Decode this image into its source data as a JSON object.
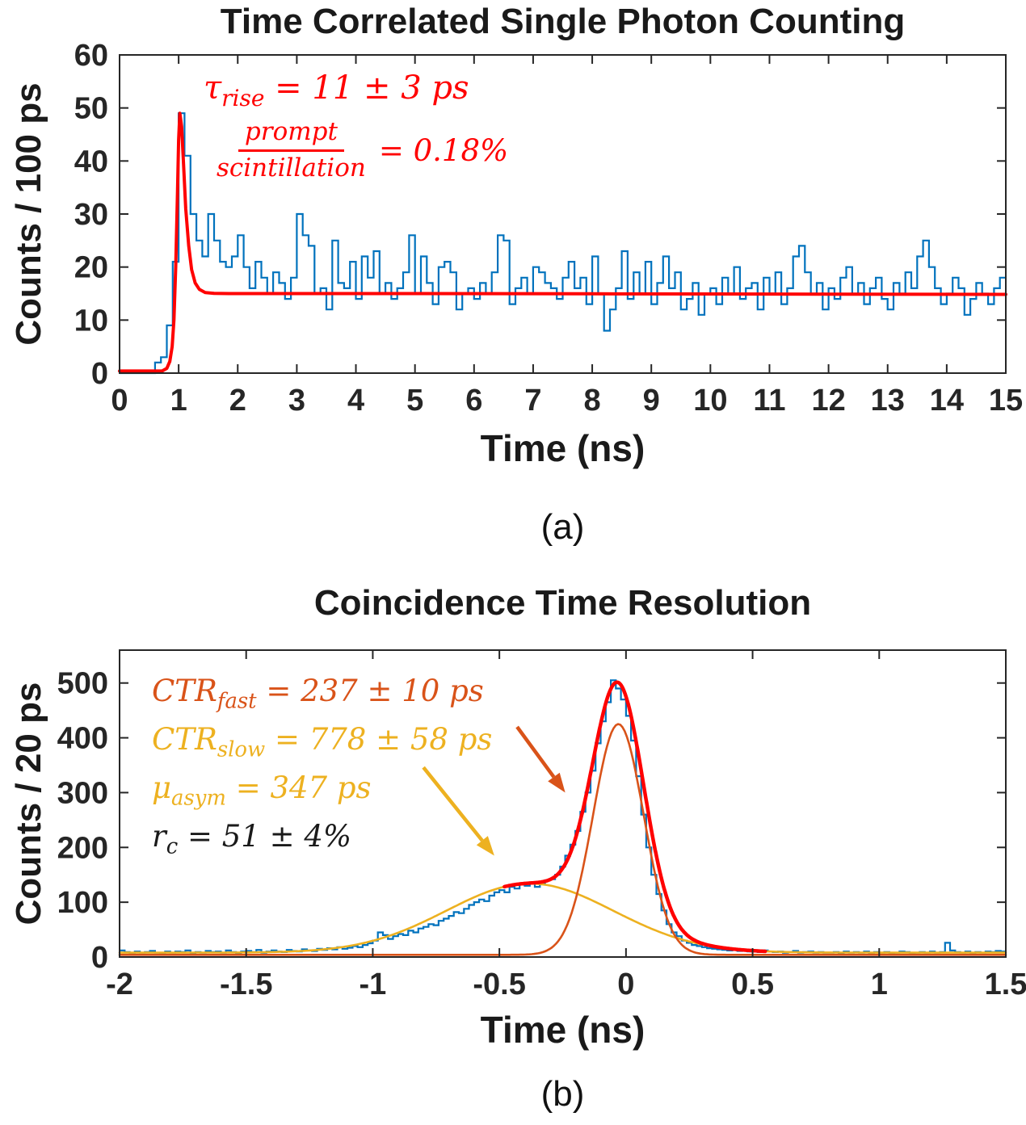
{
  "figure": {
    "background": "#ffffff",
    "sublabels": {
      "a": "(a)",
      "b": "(b)"
    }
  },
  "chart_data": [
    {
      "id": "tcspc",
      "type": "bar",
      "subtype": "step-histogram-with-fit",
      "title": "Time Correlated Single Photon Counting",
      "xlabel": "Time (ns)",
      "ylabel": "Counts / 100 ps",
      "xlim": [
        0,
        15
      ],
      "ylim": [
        0,
        60
      ],
      "grid": false,
      "xtick_vals": [
        0,
        1,
        2,
        3,
        4,
        5,
        6,
        7,
        8,
        9,
        10,
        11,
        12,
        13,
        14,
        15
      ],
      "xtick_labels": [
        "0",
        "1",
        "2",
        "3",
        "4",
        "5",
        "6",
        "7",
        "8",
        "9",
        "10",
        "11",
        "12",
        "13",
        "14",
        "15"
      ],
      "ytick_vals": [
        0,
        10,
        20,
        30,
        40,
        50,
        60
      ],
      "ytick_labels": [
        "0",
        "10",
        "20",
        "30",
        "40",
        "50",
        "60"
      ],
      "histogram": {
        "color": "#0072BD",
        "x_start": 0,
        "bin_width": 0.1,
        "counts": [
          0,
          0,
          0,
          0,
          0,
          0,
          2,
          3,
          9,
          21,
          49,
          41,
          30,
          25,
          22,
          30,
          25,
          21,
          20,
          22,
          26,
          20,
          16,
          21,
          18,
          15,
          19,
          17,
          14,
          18,
          30,
          26,
          24,
          15,
          16,
          12,
          25,
          17,
          16,
          21,
          14,
          22,
          18,
          23,
          15,
          17,
          14,
          16,
          19,
          26,
          15,
          22,
          17,
          13,
          20,
          21,
          19,
          12,
          15,
          16,
          14,
          17,
          15,
          19,
          26,
          25,
          13,
          16,
          18,
          15,
          20,
          19,
          17,
          16,
          14,
          18,
          21,
          16,
          18,
          13,
          22,
          15,
          8,
          12,
          16,
          23,
          14,
          19,
          15,
          21,
          13,
          17,
          22,
          16,
          19,
          12,
          14,
          17,
          11,
          15,
          16,
          13,
          18,
          15,
          20,
          14,
          16,
          17,
          12,
          18,
          15,
          19,
          13,
          16,
          22,
          24,
          19,
          15,
          17,
          12,
          16,
          14,
          18,
          20,
          15,
          17,
          13,
          16,
          18,
          14,
          12,
          17,
          15,
          19,
          16,
          22,
          25,
          20,
          16,
          13,
          15,
          18,
          16,
          11,
          14,
          17,
          15,
          13,
          16,
          18
        ]
      },
      "curves": [
        {
          "name": "prompt-scintillation-fit",
          "color": "#FF0000",
          "width": 4,
          "points_x": [
            0,
            0.72,
            0.8,
            0.85,
            0.89,
            0.92,
            0.95,
            0.98,
            1.0,
            1.02,
            1.05,
            1.08,
            1.12,
            1.17,
            1.22,
            1.28,
            1.35,
            1.45,
            1.6,
            1.85,
            2.3,
            3,
            5,
            8,
            12,
            15
          ],
          "points_y": [
            0.4,
            0.4,
            0.9,
            2.2,
            5,
            10,
            20,
            34,
            44,
            49,
            46.5,
            40,
            31,
            24,
            19.5,
            17,
            15.8,
            15.2,
            15.05,
            15,
            15,
            15,
            15,
            14.95,
            14.9,
            14.85
          ]
        }
      ],
      "annotations": [
        {
          "id": "tau-rise",
          "color": "#FF0000",
          "symbol": "τ",
          "sub": "rise",
          "rest": " = 11 ± 3 ps"
        },
        {
          "id": "prompt-fraction",
          "color": "#FF0000",
          "numerator": "prompt",
          "denominator": "scintillation",
          "rest": "= 0.18%"
        }
      ]
    },
    {
      "id": "ctr",
      "type": "bar",
      "subtype": "step-histogram-with-fits",
      "title": "Coincidence Time Resolution",
      "xlabel": "Time (ns)",
      "ylabel": "Counts / 20 ps",
      "xlim": [
        -2,
        1.5
      ],
      "ylim": [
        0,
        560
      ],
      "grid": false,
      "xtick_vals": [
        -2,
        -1.5,
        -1,
        -0.5,
        0,
        0.5,
        1,
        1.5
      ],
      "xtick_labels": [
        "-2",
        "-1.5",
        "-1",
        "-0.5",
        "0",
        "0.5",
        "1",
        "1.5"
      ],
      "ytick_vals": [
        0,
        100,
        200,
        300,
        400,
        500
      ],
      "ytick_labels": [
        "0",
        "100",
        "200",
        "300",
        "400",
        "500"
      ],
      "histogram": {
        "color": "#0072BD",
        "x_start": -2,
        "bin_width": 0.02,
        "counts": [
          12,
          9,
          7,
          10,
          8,
          9,
          11,
          8,
          7,
          10,
          8,
          10,
          9,
          12,
          7,
          9,
          8,
          11,
          9,
          10,
          8,
          12,
          9,
          7,
          10,
          11,
          9,
          13,
          8,
          10,
          12,
          10,
          9,
          13,
          11,
          10,
          14,
          12,
          11,
          15,
          13,
          16,
          14,
          18,
          15,
          17,
          20,
          18,
          22,
          25,
          30,
          45,
          40,
          33,
          38,
          42,
          40,
          48,
          45,
          52,
          55,
          60,
          58,
          66,
          70,
          75,
          82,
          80,
          88,
          95,
          100,
          105,
          102,
          112,
          118,
          122,
          118,
          128,
          125,
          132,
          130,
          136,
          128,
          135,
          140,
          142,
          150,
          165,
          185,
          205,
          230,
          265,
          300,
          340,
          390,
          430,
          465,
          505,
          490,
          470,
          440,
          395,
          330,
          260,
          200,
          150,
          115,
          85,
          60,
          45,
          38,
          30,
          26,
          22,
          20,
          18,
          16,
          15,
          14,
          13,
          12,
          13,
          11,
          12,
          10,
          11,
          9,
          12,
          10,
          9,
          10,
          8,
          9,
          11,
          8,
          9,
          10,
          8,
          9,
          8,
          8,
          9,
          7,
          10,
          8,
          9,
          8,
          10,
          7,
          9,
          8,
          9,
          7,
          8,
          10,
          9,
          7,
          8,
          9,
          8,
          10,
          8,
          9,
          26,
          12,
          9,
          8,
          10,
          7,
          9,
          8,
          10,
          9,
          11,
          10
        ]
      },
      "curves": [
        {
          "name": "ctr-slow-fit",
          "color": "#EDB120",
          "width": 2.6,
          "base": 8,
          "gaussians": [
            [
              126,
              -0.38,
              0.33
            ]
          ],
          "range": [
            -2,
            1.5
          ]
        },
        {
          "name": "ctr-fast-fit",
          "color": "#D95319",
          "width": 2.6,
          "base": 4,
          "gaussians": [
            [
              421,
              -0.03,
              0.1
            ]
          ],
          "range": [
            -2,
            1.5
          ]
        },
        {
          "name": "ctr-total-fit",
          "color": "#FF0000",
          "width": 4.5,
          "base": 8,
          "gaussians": [
            [
              126,
              -0.38,
              0.33
            ],
            [
              421,
              -0.03,
              0.1
            ]
          ],
          "range": [
            -0.48,
            0.55
          ]
        }
      ],
      "arrows": [
        {
          "color": "#D95319",
          "from": [
            -0.43,
            420
          ],
          "to": [
            -0.24,
            300
          ]
        },
        {
          "color": "#EDB120",
          "from": [
            -0.8,
            346
          ],
          "to": [
            -0.52,
            185
          ]
        }
      ],
      "annotations": [
        {
          "id": "ctr-fast",
          "color": "#D95319",
          "symbol": "CTR",
          "sub": "fast",
          "rest": " = 237 ± 10 ps"
        },
        {
          "id": "ctr-slow",
          "color": "#EDB120",
          "symbol": "CTR",
          "sub": "slow",
          "rest": " = 778 ± 58 ps"
        },
        {
          "id": "mu-asym",
          "color": "#EDB120",
          "symbol": "μ",
          "sub": "asym",
          "rest": " = 347 ps"
        },
        {
          "id": "r-c",
          "color": "#1a1a1a",
          "symbol": "r",
          "sub": "c",
          "rest": " = 51 ± 4%"
        }
      ]
    }
  ]
}
